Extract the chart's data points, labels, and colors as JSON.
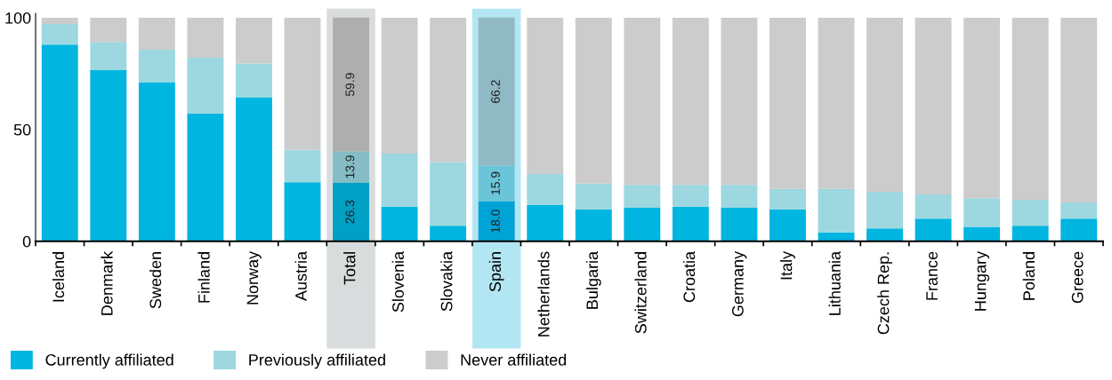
{
  "chart_data": {
    "type": "bar",
    "stacked": true,
    "categories": [
      "Iceland",
      "Denmark",
      "Sweden",
      "Finland",
      "Norway",
      "Austria",
      "Total",
      "Slovenia",
      "Slovakia",
      "Spain",
      "Netherlands",
      "Bulgaria",
      "Switzerland",
      "Croatia",
      "Germany",
      "Italy",
      "Lithuania",
      "Czech Rep.",
      "France",
      "Hungary",
      "Poland",
      "Greece"
    ],
    "series": [
      {
        "name": "Currently affiliated",
        "color": "#00b5e0",
        "colors": [
          "#00b5e0",
          "#00b5e0",
          "#00b5e0",
          "#00b5e0",
          "#00b5e0",
          "#00b5e0",
          "#009fc4",
          "#00b5e0",
          "#00b5e0",
          "#00a3d6",
          "#00b5e0",
          "#00b5e0",
          "#00b5e0",
          "#00b5e0",
          "#00b5e0",
          "#00b5e0",
          "#00b5e0",
          "#00b5e0",
          "#00b5e0",
          "#00b5e0",
          "#00b5e0",
          "#00b5e0"
        ],
        "values": [
          88.0,
          76.6,
          71.2,
          57.2,
          64.5,
          26.4,
          26.3,
          15.5,
          7.0,
          18.0,
          16.2,
          14.3,
          15.0,
          15.5,
          15.0,
          14.3,
          4.0,
          5.8,
          10.1,
          6.5,
          7.0,
          10.1
        ],
        "value_labels": [
          null,
          null,
          null,
          null,
          null,
          null,
          "26.3",
          null,
          null,
          "18.0",
          null,
          null,
          null,
          null,
          null,
          null,
          null,
          null,
          null,
          null,
          null,
          null
        ]
      },
      {
        "name": "Previously affiliated",
        "color": "#9dd7e0",
        "colors": [
          "#9dd7e0",
          "#9dd7e0",
          "#9dd7e0",
          "#9dd7e0",
          "#9dd7e0",
          "#9dd7e0",
          "#85bcc6",
          "#9dd7e0",
          "#9dd7e0",
          "#6bc5d8",
          "#9dd7e0",
          "#9dd7e0",
          "#9dd7e0",
          "#9dd7e0",
          "#9dd7e0",
          "#9dd7e0",
          "#9dd7e0",
          "#9dd7e0",
          "#9dd7e0",
          "#9dd7e0",
          "#9dd7e0",
          "#9dd7e0"
        ],
        "values": [
          9.2,
          12.6,
          14.5,
          24.9,
          15.1,
          14.5,
          13.9,
          23.7,
          28.5,
          15.9,
          13.9,
          11.5,
          10.2,
          9.7,
          10.2,
          9.1,
          19.4,
          16.4,
          10.9,
          12.8,
          11.6,
          7.3
        ],
        "value_labels": [
          null,
          null,
          null,
          null,
          null,
          null,
          "13.9",
          null,
          null,
          "15.9",
          null,
          null,
          null,
          null,
          null,
          null,
          null,
          null,
          null,
          null,
          null,
          null
        ]
      },
      {
        "name": "Never affiliated",
        "color": "#cccccc",
        "colors": [
          "#cccccc",
          "#cccccc",
          "#cccccc",
          "#cccccc",
          "#cccccc",
          "#cccccc",
          "#aeaeae",
          "#cccccc",
          "#cccccc",
          "#91b9c4",
          "#cccccc",
          "#cccccc",
          "#cccccc",
          "#cccccc",
          "#cccccc",
          "#cccccc",
          "#cccccc",
          "#cccccc",
          "#cccccc",
          "#cccccc",
          "#cccccc",
          "#cccccc"
        ],
        "values": [
          2.8,
          10.8,
          14.3,
          17.9,
          20.4,
          59.1,
          59.9,
          60.8,
          64.5,
          66.2,
          69.9,
          74.2,
          74.8,
          74.8,
          74.8,
          76.6,
          76.6,
          77.8,
          79.0,
          80.7,
          81.4,
          82.6
        ],
        "value_labels": [
          null,
          null,
          null,
          null,
          null,
          null,
          "59.9",
          null,
          null,
          "66.2",
          null,
          null,
          null,
          null,
          null,
          null,
          null,
          null,
          null,
          null,
          null,
          null
        ]
      }
    ],
    "bands": [
      {
        "axis": "x",
        "from": "Total",
        "to": "Total",
        "color": "#d9dcdd"
      },
      {
        "axis": "x",
        "from": "Spain",
        "to": "Spain",
        "color": "#b3e6f3"
      }
    ],
    "ylim": [
      0,
      102
    ],
    "yticks": [
      0,
      50,
      100
    ],
    "grid": false,
    "legend": "bottom left"
  }
}
